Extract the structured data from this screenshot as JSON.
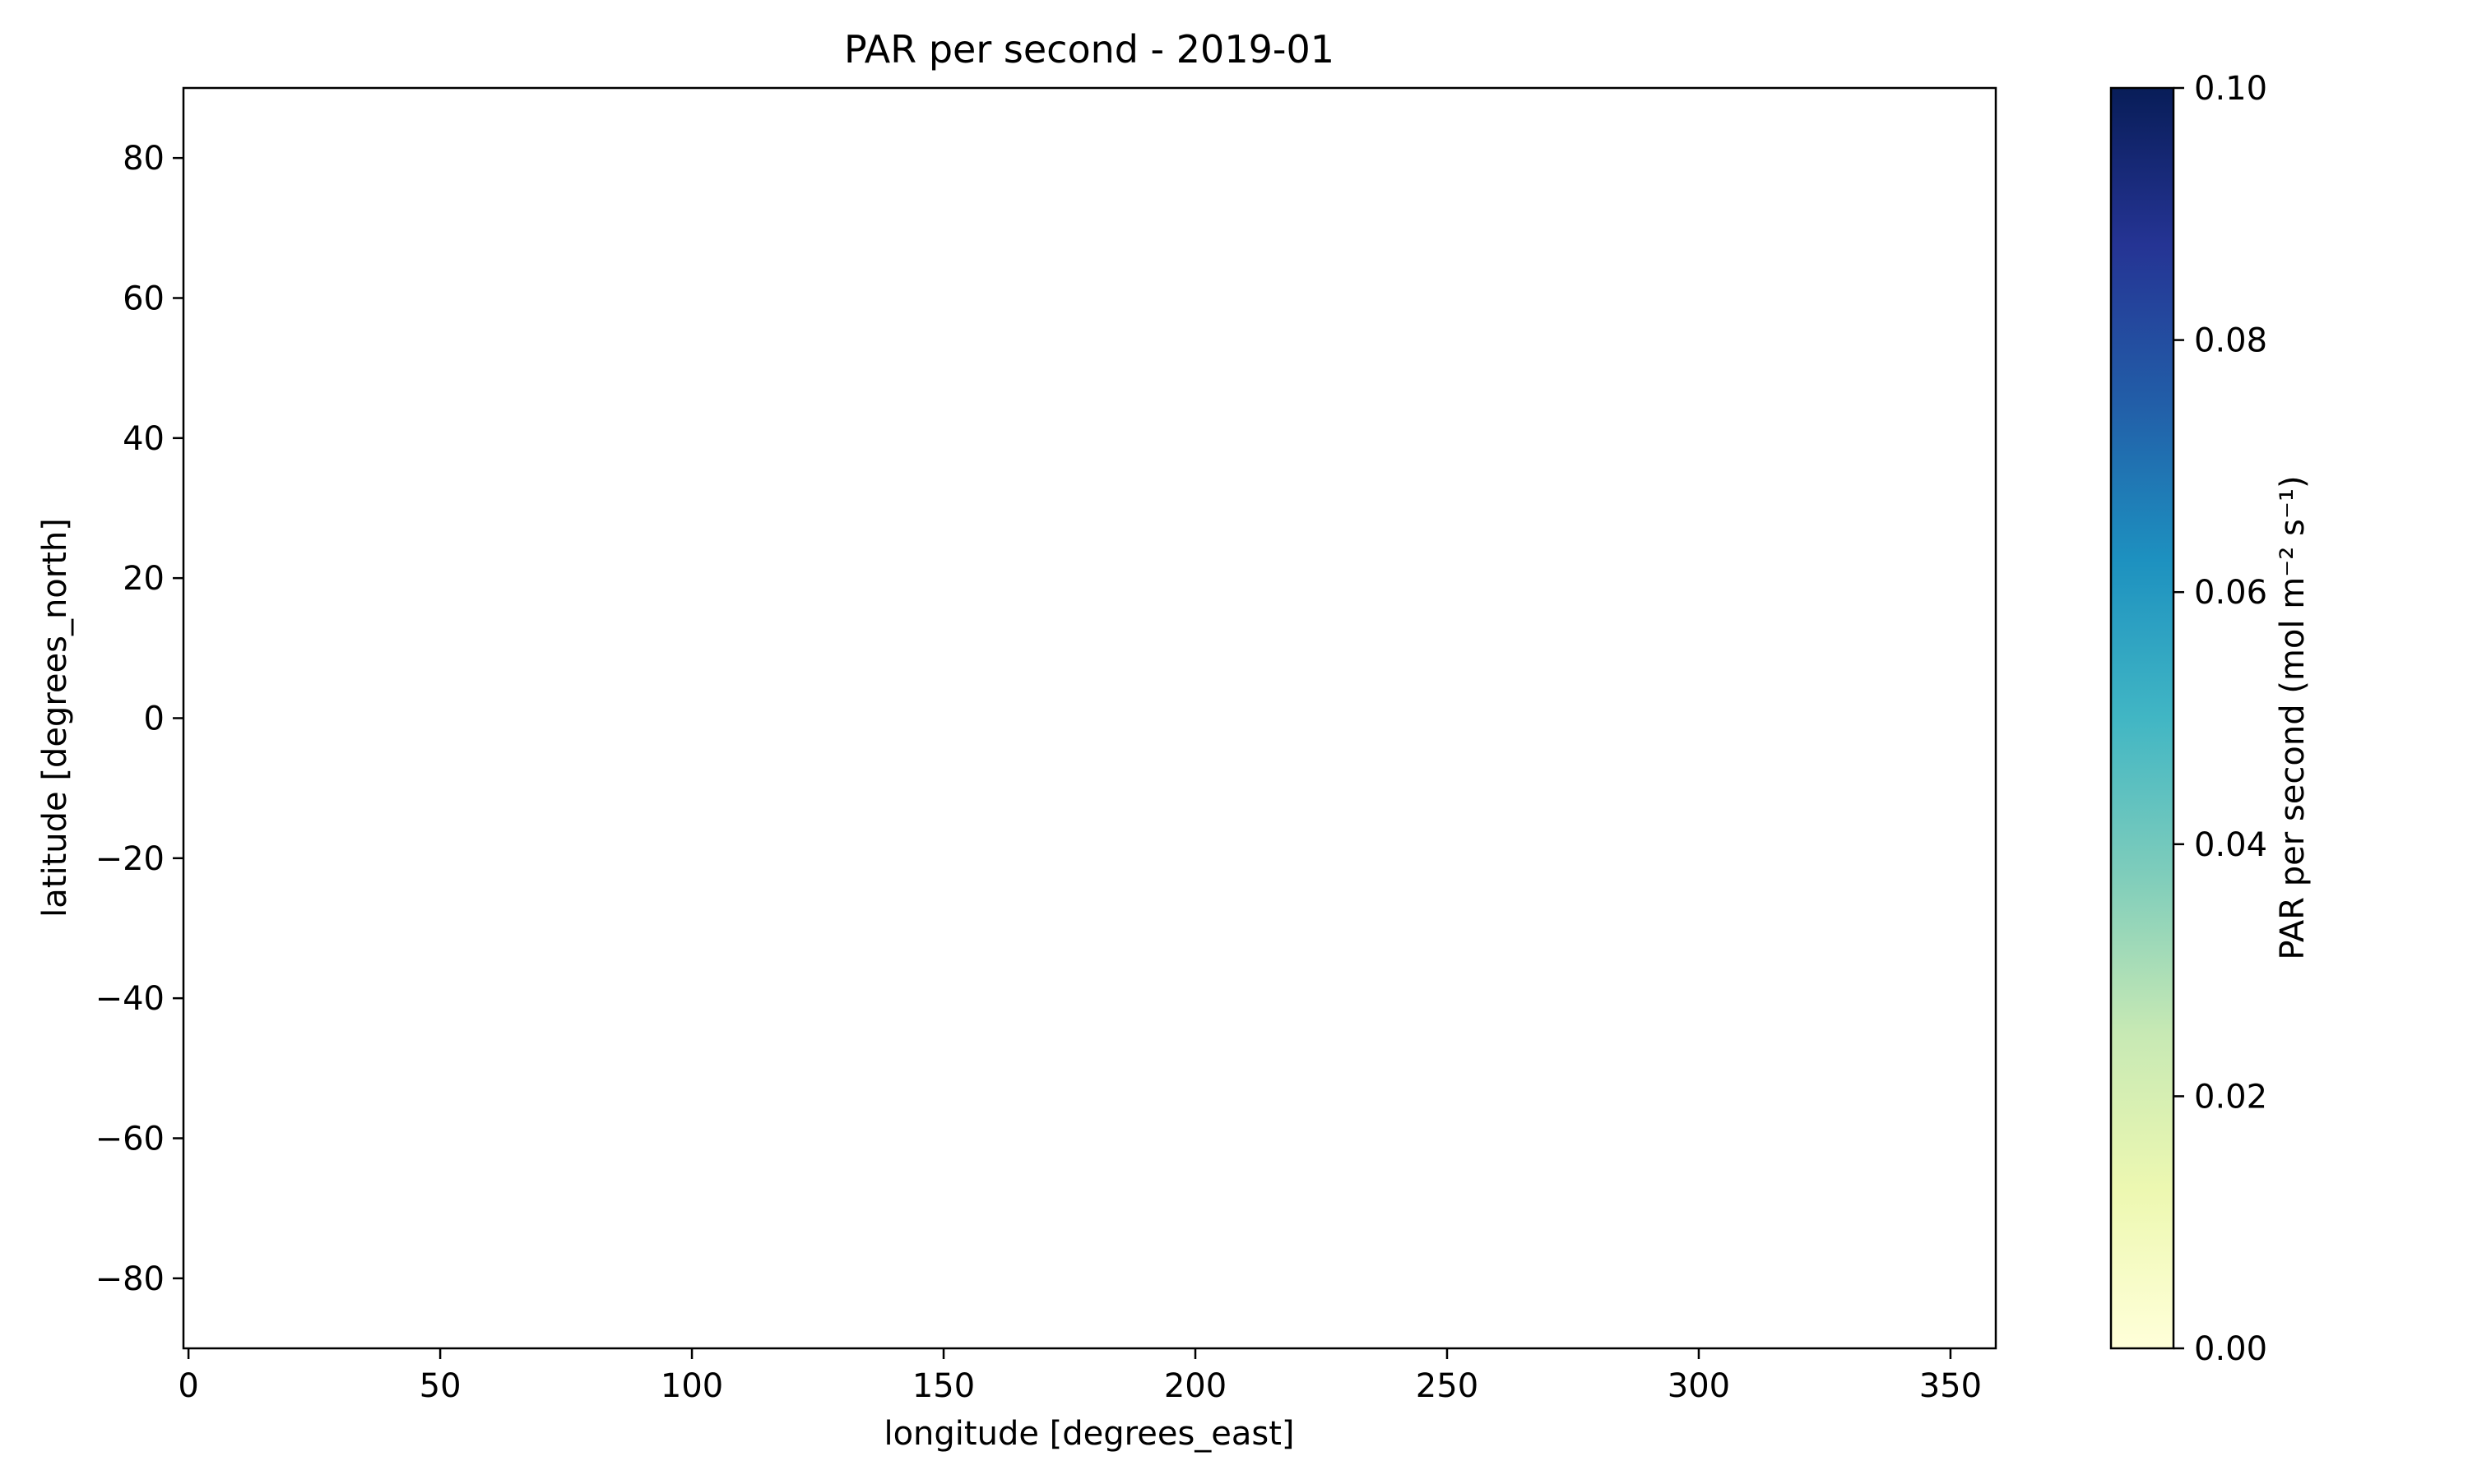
{
  "chart_data": {
    "type": "heatmap",
    "title": "PAR per second - 2019-01",
    "xlabel": "longitude [degrees_east]",
    "ylabel": "latitude [degrees_north]",
    "xlim": [
      -1,
      359
    ],
    "ylim": [
      -90,
      90
    ],
    "xticks": [
      0,
      50,
      100,
      150,
      200,
      250,
      300,
      350
    ],
    "xtick_labels": [
      "0",
      "50",
      "100",
      "150",
      "200",
      "250",
      "300",
      "350"
    ],
    "yticks": [
      80,
      60,
      40,
      20,
      0,
      -20,
      -40,
      -60,
      -80
    ],
    "ytick_labels": [
      "80",
      "60",
      "40",
      "20",
      "0",
      "−20",
      "−40",
      "−60",
      "−80"
    ],
    "grid": false,
    "values": [],
    "colorbar": {
      "label": "PAR per second (mol m⁻² s⁻¹)",
      "range": [
        0,
        0.1
      ],
      "ticks": [
        0,
        0.02,
        0.04,
        0.06,
        0.08,
        0.1
      ],
      "tick_labels": [
        "0.00",
        "0.02",
        "0.04",
        "0.06",
        "0.08",
        "0.10"
      ],
      "colormap": "YlGnBu",
      "colors": [
        "#ffffd9",
        "#edf8b1",
        "#c7e9b4",
        "#7fcdbb",
        "#41b6c4",
        "#1d91c0",
        "#225ea8",
        "#253494",
        "#081d58"
      ]
    }
  }
}
